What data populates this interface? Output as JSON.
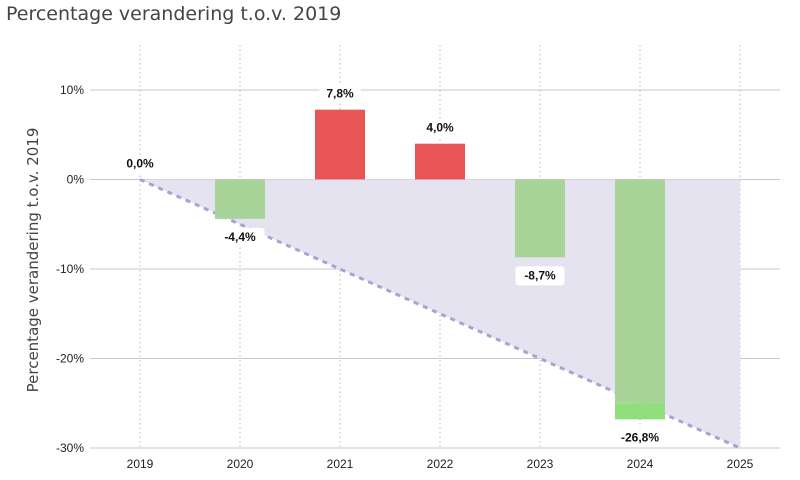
{
  "chart_data": {
    "type": "bar",
    "title": "Percentage verandering t.o.v. 2019",
    "xlabel": "",
    "ylabel": "Percentage verandering t.o.v. 2019",
    "categories": [
      "2019",
      "2020",
      "2021",
      "2022",
      "2023",
      "2024",
      "2025"
    ],
    "values": [
      0.0,
      -4.4,
      7.8,
      4.0,
      -8.7,
      -26.8,
      null
    ],
    "data_labels": [
      "0,0%",
      "-4,4%",
      "7,8%",
      "4,0%",
      "-8,7%",
      "-26,8%",
      ""
    ],
    "ylim": [
      -30,
      10
    ],
    "yticks": [
      10,
      0,
      -10,
      -20,
      -30
    ],
    "ytick_labels": [
      "10%",
      "0%",
      "-10%",
      "-20%",
      "-30%"
    ],
    "grid": "horizontal solid, vertical dotted",
    "reference_line": {
      "style": "dashed",
      "from": {
        "x": "2019",
        "y": 0
      },
      "to": {
        "x": "2025",
        "y": -30
      }
    },
    "colors": {
      "increase": "#e85555",
      "decrease": "#a8d49a",
      "decrease_below_line": "#8fe07a",
      "reference_fill": "#e6e3f1",
      "reference_line": "#a9a3cf",
      "grid": "#c8c8c8"
    }
  }
}
